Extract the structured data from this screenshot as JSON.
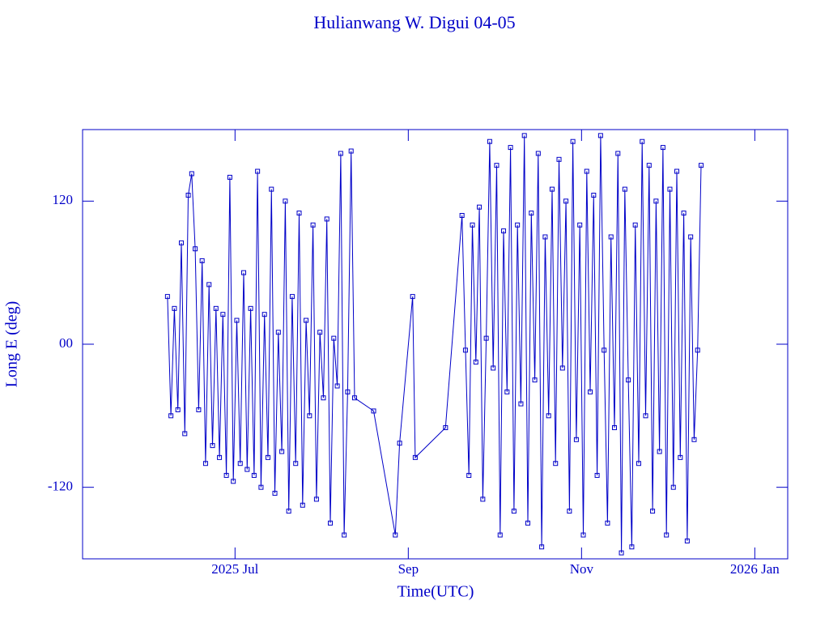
{
  "chart_data": {
    "type": "line",
    "title": "Hulianwang W. Digui 04-05",
    "x_label": "Time(UTC)",
    "y_label": "Long E (deg)",
    "color": "#0000c8",
    "marker": "square",
    "xlim": [
      5.24,
      13.38
    ],
    "xticks": [
      {
        "value": 7,
        "label": "2025 Jul"
      },
      {
        "value": 9,
        "label": "Sep"
      },
      {
        "value": 11,
        "label": "Nov"
      },
      {
        "value": 13,
        "label": "2026 Jan"
      }
    ],
    "ylim": [
      -180,
      180
    ],
    "yticks": [
      -120,
      {
        "value": 0,
        "label": "00"
      },
      120
    ],
    "x": [
      6.22,
      6.26,
      6.3,
      6.34,
      6.38,
      6.42,
      6.46,
      6.5,
      6.54,
      6.58,
      6.62,
      6.66,
      6.7,
      6.74,
      6.78,
      6.82,
      6.86,
      6.9,
      6.94,
      6.98,
      7.02,
      7.06,
      7.1,
      7.14,
      7.18,
      7.22,
      7.26,
      7.3,
      7.34,
      7.38,
      7.42,
      7.46,
      7.5,
      7.54,
      7.58,
      7.62,
      7.66,
      7.7,
      7.74,
      7.78,
      7.82,
      7.86,
      7.9,
      7.94,
      7.98,
      8.02,
      8.06,
      8.1,
      8.14,
      8.18,
      8.22,
      8.26,
      8.3,
      8.34,
      8.38,
      8.6,
      8.85,
      8.9,
      9.05,
      9.08,
      9.43,
      9.62,
      9.66,
      9.7,
      9.74,
      9.78,
      9.82,
      9.86,
      9.9,
      9.94,
      9.98,
      10.02,
      10.06,
      10.1,
      10.14,
      10.18,
      10.22,
      10.26,
      10.3,
      10.34,
      10.38,
      10.42,
      10.46,
      10.5,
      10.54,
      10.58,
      10.62,
      10.66,
      10.7,
      10.74,
      10.78,
      10.82,
      10.86,
      10.9,
      10.94,
      10.98,
      11.02,
      11.06,
      11.1,
      11.14,
      11.18,
      11.22,
      11.26,
      11.3,
      11.34,
      11.38,
      11.42,
      11.46,
      11.5,
      11.54,
      11.58,
      11.62,
      11.66,
      11.7,
      11.74,
      11.78,
      11.82,
      11.86,
      11.9,
      11.94,
      11.98,
      12.02,
      12.06,
      12.1,
      12.14,
      12.18,
      12.22,
      12.26,
      12.3,
      12.34,
      12.38
    ],
    "values": [
      40,
      -60,
      30,
      -55,
      85,
      -75,
      125,
      143,
      80,
      -55,
      70,
      -100,
      50,
      -85,
      30,
      -95,
      25,
      -110,
      140,
      -115,
      20,
      -100,
      60,
      -105,
      30,
      -110,
      145,
      -120,
      25,
      -95,
      130,
      -125,
      10,
      -90,
      120,
      -140,
      40,
      -100,
      110,
      -135,
      20,
      -60,
      100,
      -130,
      10,
      -45,
      105,
      -150,
      5,
      -35,
      160,
      -160,
      -40,
      162,
      -45,
      -56,
      -160,
      -83,
      40,
      -95,
      -70,
      108,
      -5,
      -110,
      100,
      -15,
      115,
      -130,
      5,
      170,
      -20,
      150,
      -160,
      95,
      -40,
      165,
      -140,
      100,
      -50,
      175,
      -150,
      110,
      -30,
      160,
      -170,
      90,
      -60,
      130,
      -100,
      155,
      -20,
      120,
      -140,
      170,
      -80,
      100,
      -160,
      145,
      -40,
      125,
      -110,
      175,
      -5,
      -150,
      90,
      -70,
      160,
      -175,
      130,
      -30,
      -170,
      100,
      -100,
      170,
      -60,
      150,
      -140,
      120,
      -90,
      165,
      -160,
      130,
      -120,
      145,
      -95,
      110,
      -165,
      90,
      -80,
      -5,
      150
    ]
  }
}
